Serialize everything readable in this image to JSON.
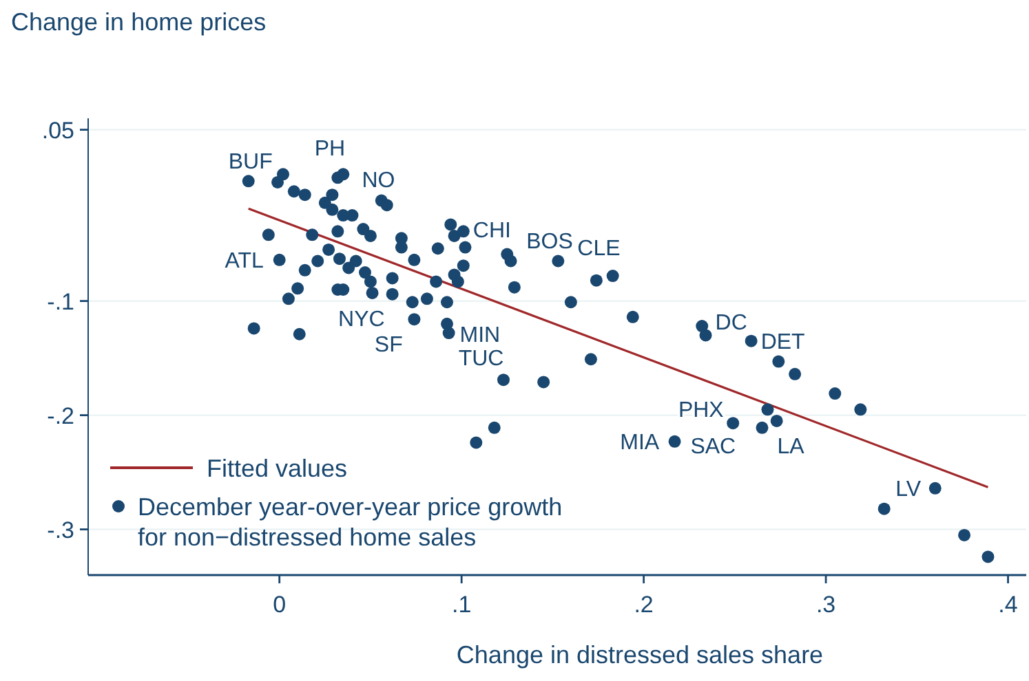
{
  "chart_data": {
    "type": "scatter",
    "xlabel": "Change in distressed sales share",
    "ylabel": "Change in home prices",
    "xlim": [
      -0.105,
      0.41
    ],
    "ylim": [
      -0.34,
      0.06
    ],
    "xticks": [
      {
        "value": 0,
        "label": "0"
      },
      {
        "value": 0.1,
        "label": ".1"
      },
      {
        "value": 0.2,
        "label": ".2"
      },
      {
        "value": 0.3,
        "label": ".3"
      },
      {
        "value": 0.4,
        "label": ".4"
      }
    ],
    "yticks": [
      {
        "value": 0.05,
        "label": ".05"
      },
      {
        "value": -0.1,
        "label": "-.1"
      },
      {
        "value": -0.2,
        "label": "-.2"
      },
      {
        "value": -0.3,
        "label": "-.3"
      }
    ],
    "grid": "y",
    "legend": "bottom left",
    "series": [
      {
        "type": "line",
        "name": "Fitted values",
        "color": "#a0282a",
        "line_style": "solid",
        "x": [
          -0.017,
          0.389
        ],
        "values": [
          -0.019,
          -0.263
        ]
      },
      {
        "marker": "circle",
        "name": "December year-over-year price growth\nfor non−distressed home sales",
        "color": "#1a476f",
        "x": [
          -0.017,
          0.002,
          -0.001,
          0.008,
          0.014,
          0.032,
          0.035,
          0.029,
          0.025,
          0.029,
          0.035,
          0.04,
          0.056,
          0.059,
          -0.006,
          0.018,
          0.032,
          0.046,
          0.05,
          0.067,
          0.067,
          0.0,
          0.014,
          0.021,
          0.027,
          0.033,
          0.038,
          0.042,
          0.047,
          0.05,
          0.074,
          0.087,
          0.094,
          0.096,
          0.101,
          0.102,
          0.101,
          0.086,
          0.096,
          0.098,
          0.125,
          0.127,
          0.129,
          0.153,
          0.16,
          0.174,
          0.183,
          0.062,
          0.051,
          0.032,
          0.035,
          0.005,
          0.01,
          0.062,
          0.073,
          0.081,
          0.092,
          0.074,
          0.092,
          0.093,
          -0.014,
          0.011,
          0.171,
          0.194,
          0.123,
          0.145,
          0.108,
          0.118,
          0.232,
          0.234,
          0.259,
          0.274,
          0.283,
          0.305,
          0.319,
          0.268,
          0.273,
          0.265,
          0.249,
          0.217,
          0.36,
          0.332,
          0.376,
          0.389
        ],
        "values": [
          0.005,
          0.011,
          0.004,
          -0.004,
          -0.007,
          0.008,
          0.011,
          -0.007,
          -0.014,
          -0.02,
          -0.025,
          -0.025,
          -0.012,
          -0.016,
          -0.042,
          -0.042,
          -0.039,
          -0.037,
          -0.043,
          -0.045,
          -0.053,
          -0.064,
          -0.073,
          -0.065,
          -0.055,
          -0.063,
          -0.071,
          -0.065,
          -0.075,
          -0.083,
          -0.064,
          -0.054,
          -0.033,
          -0.043,
          -0.039,
          -0.053,
          -0.069,
          -0.083,
          -0.077,
          -0.083,
          -0.059,
          -0.065,
          -0.088,
          -0.065,
          -0.101,
          -0.082,
          -0.078,
          -0.08,
          -0.093,
          -0.09,
          -0.09,
          -0.098,
          -0.089,
          -0.094,
          -0.101,
          -0.098,
          -0.101,
          -0.116,
          -0.12,
          -0.128,
          -0.124,
          -0.129,
          -0.151,
          -0.114,
          -0.169,
          -0.171,
          -0.224,
          -0.211,
          -0.122,
          -0.13,
          -0.135,
          -0.153,
          -0.164,
          -0.181,
          -0.195,
          -0.195,
          -0.205,
          -0.211,
          -0.207,
          -0.223,
          -0.264,
          -0.282,
          -0.305,
          -0.324
        ]
      }
    ],
    "annotations": [
      {
        "text": "BUF",
        "x": 0.002,
        "y": 0.011
      },
      {
        "text": "PH",
        "x": 0.014,
        "y": -0.007
      },
      {
        "text": "NO",
        "x": 0.04,
        "y": -0.025
      },
      {
        "text": "ATL",
        "x": 0.0,
        "y": -0.064
      },
      {
        "text": "NYC",
        "x": 0.027,
        "y": -0.055
      },
      {
        "text": "CHI",
        "x": 0.101,
        "y": -0.069
      },
      {
        "text": "BOS",
        "x": 0.125,
        "y": -0.059
      },
      {
        "text": "CLE",
        "x": 0.153,
        "y": -0.065
      },
      {
        "text": "MIN",
        "x": 0.129,
        "y": -0.088
      },
      {
        "text": "SF",
        "x": 0.074,
        "y": -0.116
      },
      {
        "text": "TUC",
        "x": 0.093,
        "y": -0.128
      },
      {
        "text": "DC",
        "x": 0.234,
        "y": -0.13
      },
      {
        "text": "DET",
        "x": 0.259,
        "y": -0.135
      },
      {
        "text": "LA",
        "x": 0.268,
        "y": -0.195
      },
      {
        "text": "SAC",
        "x": 0.273,
        "y": -0.205
      },
      {
        "text": "PHX",
        "x": 0.249,
        "y": -0.207
      },
      {
        "text": "MIA",
        "x": 0.217,
        "y": -0.223
      },
      {
        "text": "LV",
        "x": 0.36,
        "y": -0.264
      }
    ]
  }
}
